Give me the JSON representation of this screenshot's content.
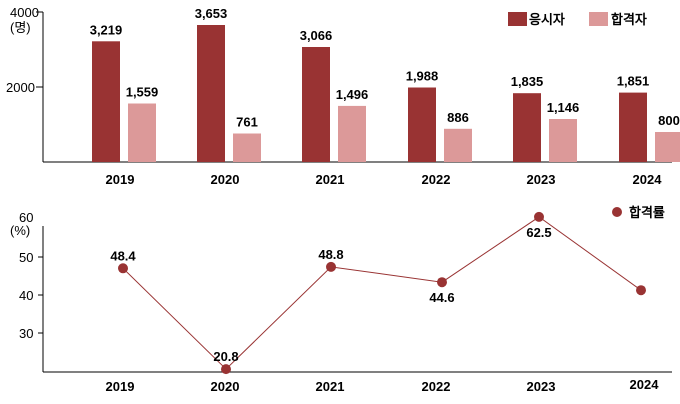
{
  "chart_data": [
    {
      "type": "bar",
      "title": "",
      "categories": [
        "2019",
        "2020",
        "2021",
        "2022",
        "2023",
        "2024"
      ],
      "series": [
        {
          "name": "응시자",
          "values": [
            3219,
            3653,
            3066,
            1988,
            1835,
            1851
          ],
          "labels": [
            "3,219",
            "3,653",
            "3,066",
            "1,988",
            "1,835",
            "1,851"
          ],
          "color": "#993333"
        },
        {
          "name": "합격자",
          "values": [
            1559,
            761,
            1496,
            886,
            1146,
            800
          ],
          "labels": [
            "1,559",
            "761",
            "1,496",
            "886",
            "1,146",
            "800"
          ],
          "color": "#dc9999"
        }
      ],
      "yticks": [
        "2000",
        "4000"
      ],
      "ytick_values": [
        2000,
        4000
      ],
      "yunit": "(명)",
      "ylim": [
        0,
        4000
      ],
      "legend": "top-right"
    },
    {
      "type": "line",
      "title": "",
      "categories": [
        "2019",
        "2020",
        "2021",
        "2022",
        "2023",
        "2024"
      ],
      "series": [
        {
          "name": "합격률",
          "values": [
            48.4,
            20.8,
            48.8,
            44.6,
            62.5,
            42.4
          ],
          "labels": [
            "48.4",
            "20.8",
            "48.8",
            "44.6",
            "62.5",
            ""
          ],
          "color": "#993333"
        }
      ],
      "yticks": [
        "30",
        "40",
        "50",
        "60"
      ],
      "ytick_values": [
        30,
        40,
        50,
        60
      ],
      "yunit": "(%)",
      "ylim": [
        20,
        60
      ],
      "legend": "top-right"
    }
  ]
}
